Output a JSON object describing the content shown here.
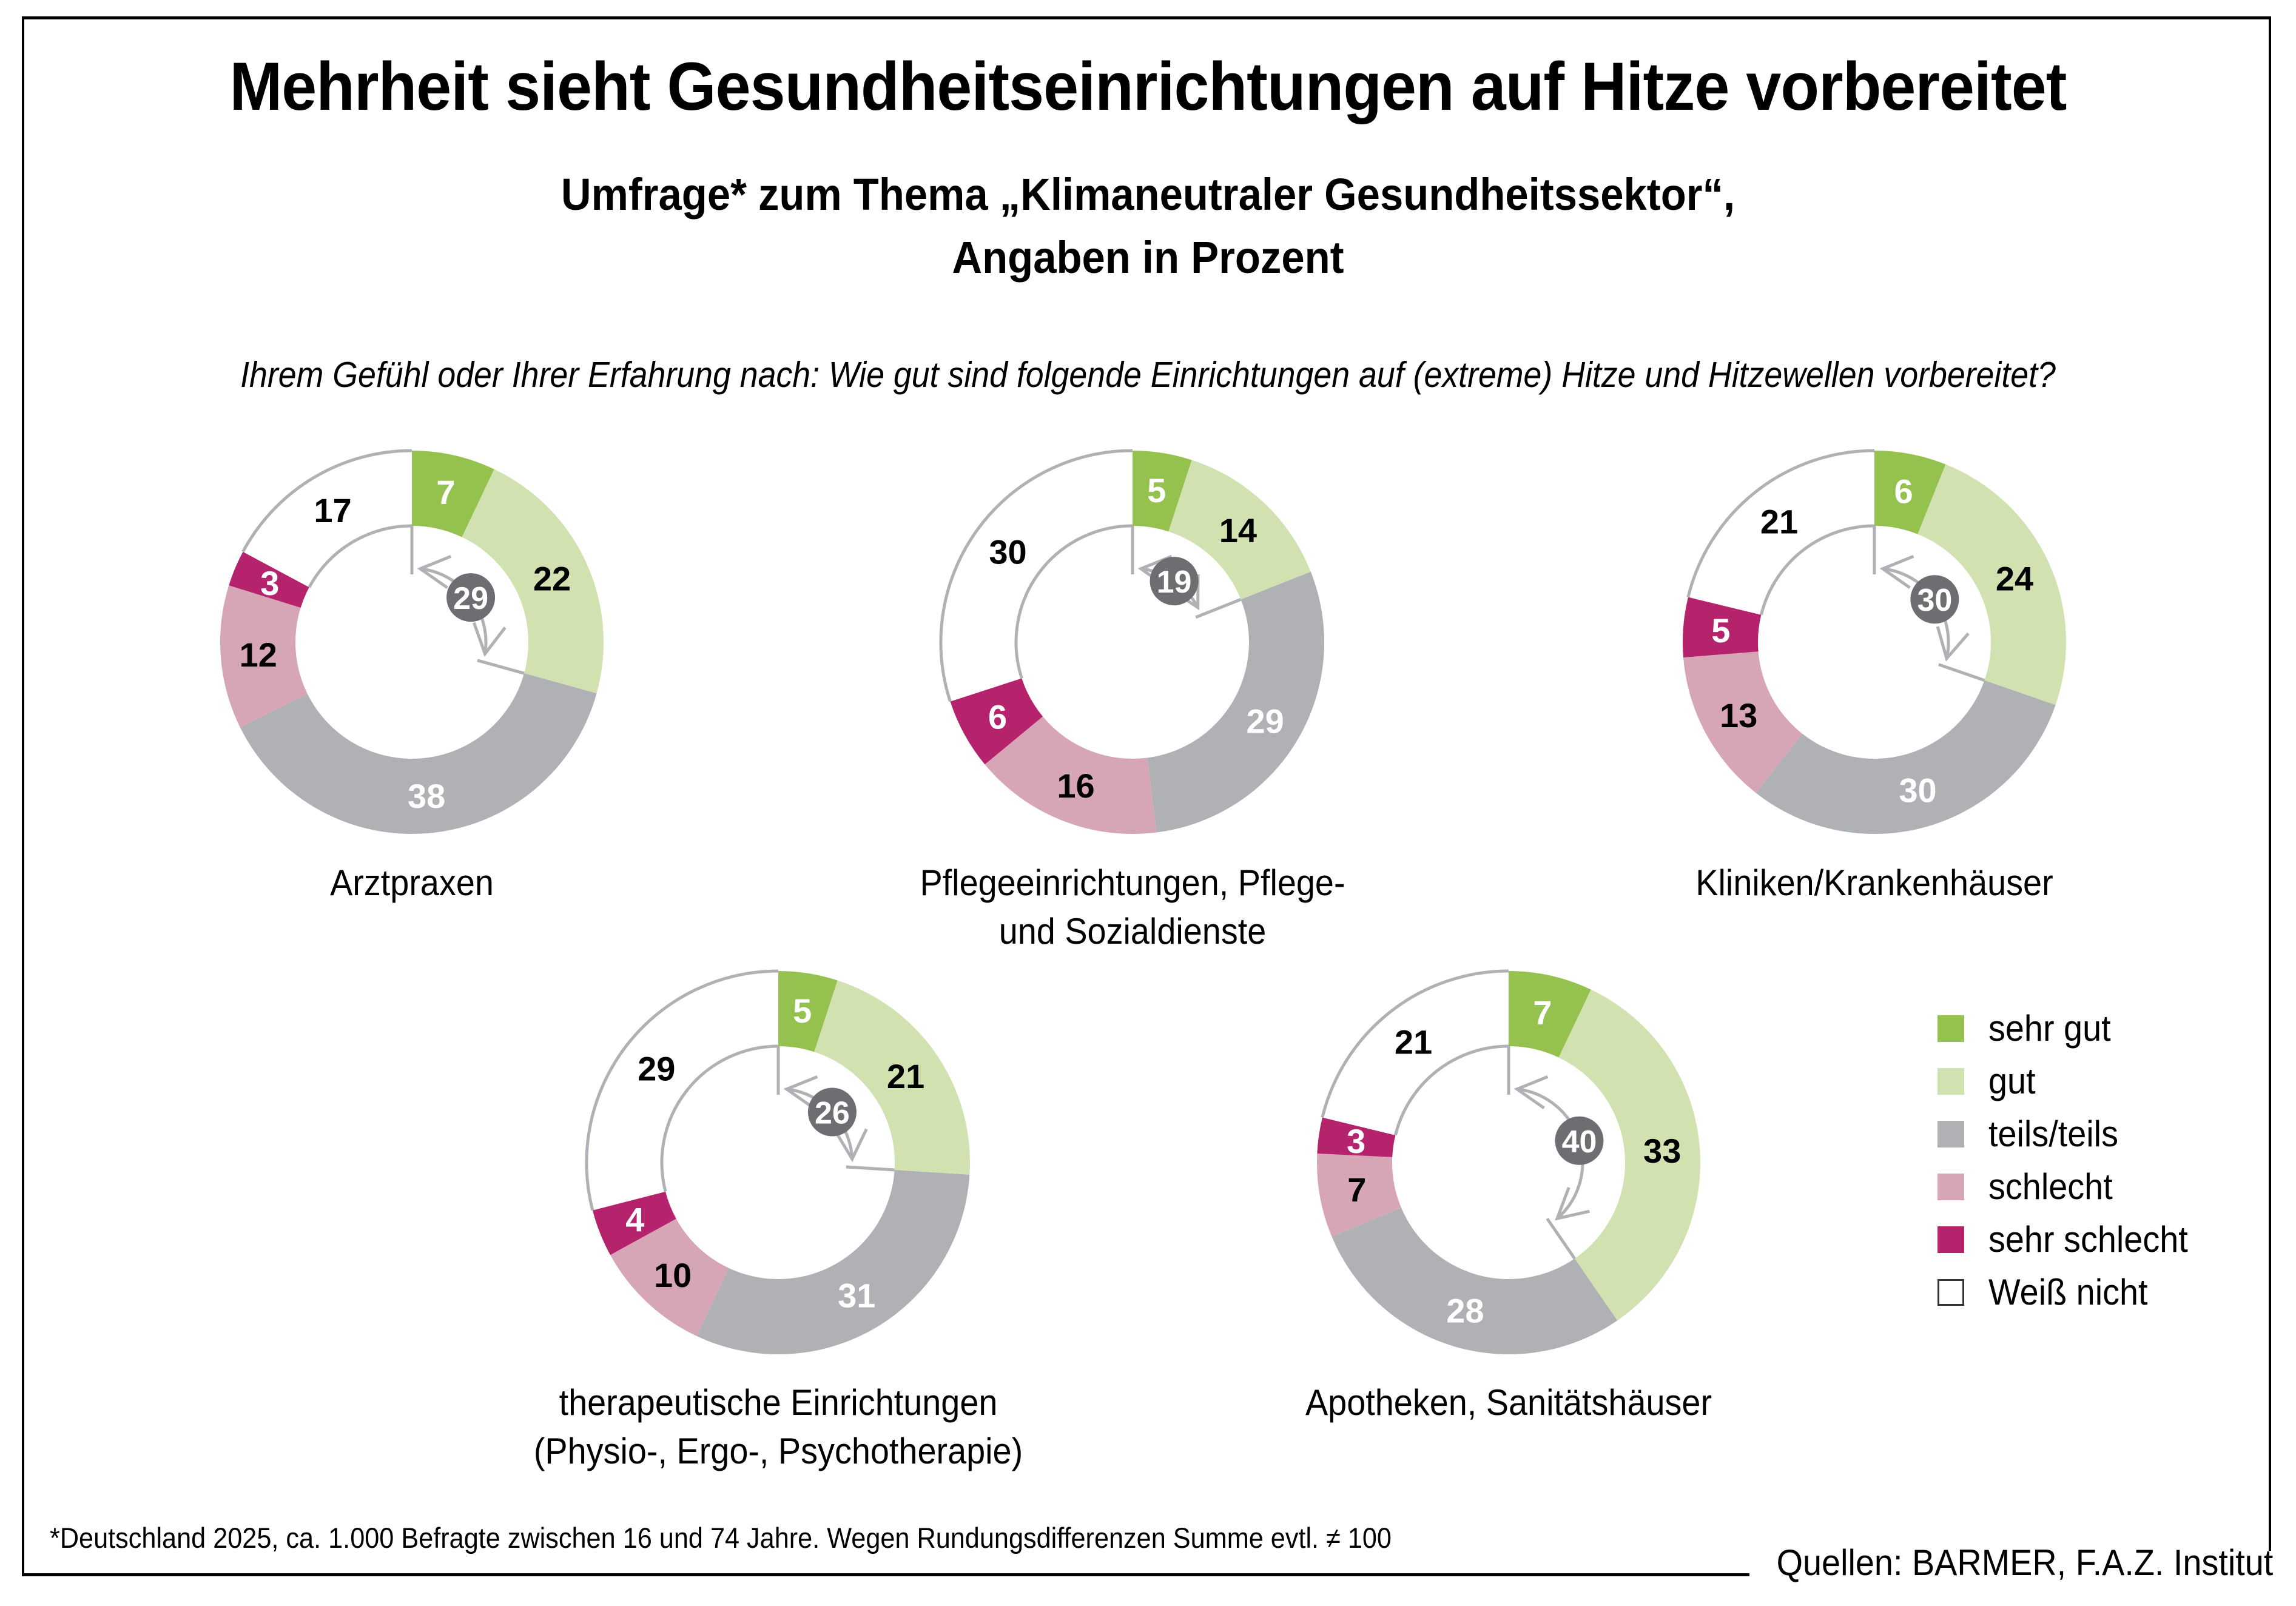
{
  "header": {
    "title": "Mehrheit sieht Gesundheitseinrichtungen auf Hitze vorbereitet",
    "subtitle_line1": "Umfrage* zum Thema „Klimaneutraler Gesundheitssektor“,",
    "subtitle_line2": "Angaben in Prozent",
    "question": "Ihrem Gefühl oder Ihrer Erfahrung nach: Wie gut sind folgende Einrichtungen auf (extreme) Hitze und Hitzewellen vorbereitet?"
  },
  "legend": [
    {
      "label": "sehr gut",
      "color": "#95c14f"
    },
    {
      "label": "gut",
      "color": "#d1e2b0"
    },
    {
      "label": "teils/teils",
      "color": "#b0b1b4"
    },
    {
      "label": "schlecht",
      "color": "#d7a6b6"
    },
    {
      "label": "sehr schlecht",
      "color": "#b5236d"
    },
    {
      "label": "Weiß nicht",
      "color": "#ffffff"
    }
  ],
  "footer": {
    "footnote": "*Deutschland 2025, ca. 1.000 Befragte zwischen 16 und 74 Jahre. Wegen Rundungsdifferenzen Summe evtl. ≠ 100",
    "source": "Quellen: BARMER, F.A.Z. Institut"
  },
  "chart_data": {
    "type": "pie",
    "variant": "donut",
    "title": "Mehrheit sieht Gesundheitseinrichtungen auf Hitze vorbereitet",
    "subtitle": "Umfrage* zum Thema „Klimaneutraler Gesundheitssektor“, Angaben in Prozent",
    "unit": "%",
    "categories": [
      "sehr gut",
      "gut",
      "teils/teils",
      "schlecht",
      "sehr schlecht",
      "Weiß nicht"
    ],
    "colors": [
      "#95c14f",
      "#d1e2b0",
      "#b0b1b4",
      "#d7a6b6",
      "#b5236d",
      "#ffffff"
    ],
    "label_colors": [
      "#ffffff",
      "#000000",
      "#ffffff",
      "#000000",
      "#ffffff",
      "#000000"
    ],
    "highlight": {
      "description": "sehr gut + gut",
      "badge_color": "#6d6e71"
    },
    "legend_position": "right",
    "series": [
      {
        "name": "Arztpraxen",
        "label_lines": [
          "Arztpraxen"
        ],
        "values": [
          7,
          22,
          38,
          12,
          3,
          17
        ],
        "highlight_total": 29
      },
      {
        "name": "Pflegeeinrichtungen, Pflege- und Sozialdienste",
        "label_lines": [
          "Pflegeeinrichtungen, Pflege-",
          "und Sozialdienste"
        ],
        "values": [
          5,
          14,
          29,
          16,
          6,
          30
        ],
        "highlight_total": 19
      },
      {
        "name": "Kliniken/Krankenhäuser",
        "label_lines": [
          "Kliniken/Krankenhäuser"
        ],
        "values": [
          6,
          24,
          30,
          13,
          5,
          21
        ],
        "highlight_total": 30
      },
      {
        "name": "therapeutische Einrichtungen (Physio-, Ergo-, Psychotherapie)",
        "label_lines": [
          "therapeutische Einrichtungen",
          "(Physio-, Ergo-, Psychotherapie)"
        ],
        "values": [
          5,
          21,
          31,
          10,
          4,
          29
        ],
        "highlight_total": 26
      },
      {
        "name": "Apotheken, Sanitätshäuser",
        "label_lines": [
          "Apotheken, Sanitätshäuser"
        ],
        "values": [
          7,
          33,
          28,
          7,
          3,
          21
        ],
        "highlight_total": 40
      }
    ]
  }
}
